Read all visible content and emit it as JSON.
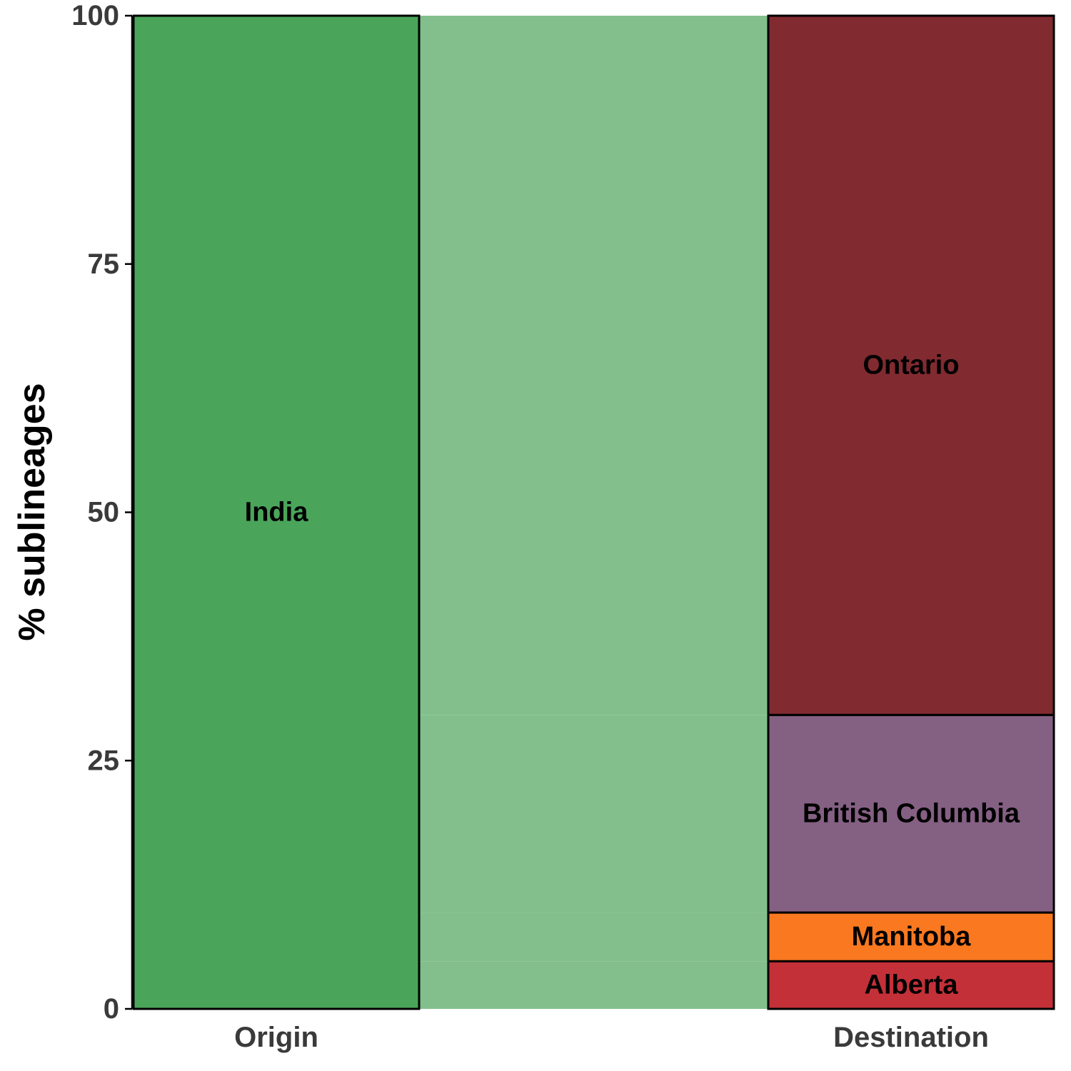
{
  "chart_data": {
    "type": "alluvial",
    "ylabel": "% sublineages",
    "ylim": [
      0,
      100
    ],
    "yticks": [
      0,
      25,
      50,
      75,
      100
    ],
    "axes": [
      {
        "name": "Origin",
        "strata": [
          {
            "label": "India",
            "value": 100,
            "color": "#4aa55a"
          }
        ]
      },
      {
        "name": "Destination",
        "strata": [
          {
            "label": "Alberta",
            "value": 4.8,
            "color": "#c43038"
          },
          {
            "label": "Manitoba",
            "value": 4.9,
            "color": "#fa7820"
          },
          {
            "label": "British Columbia",
            "value": 19.9,
            "color": "#846083"
          },
          {
            "label": "Ontario",
            "value": 70.4,
            "color": "#812a30"
          }
        ]
      }
    ],
    "flow_color": "#82bf8c",
    "grid": false,
    "legend": "none"
  }
}
